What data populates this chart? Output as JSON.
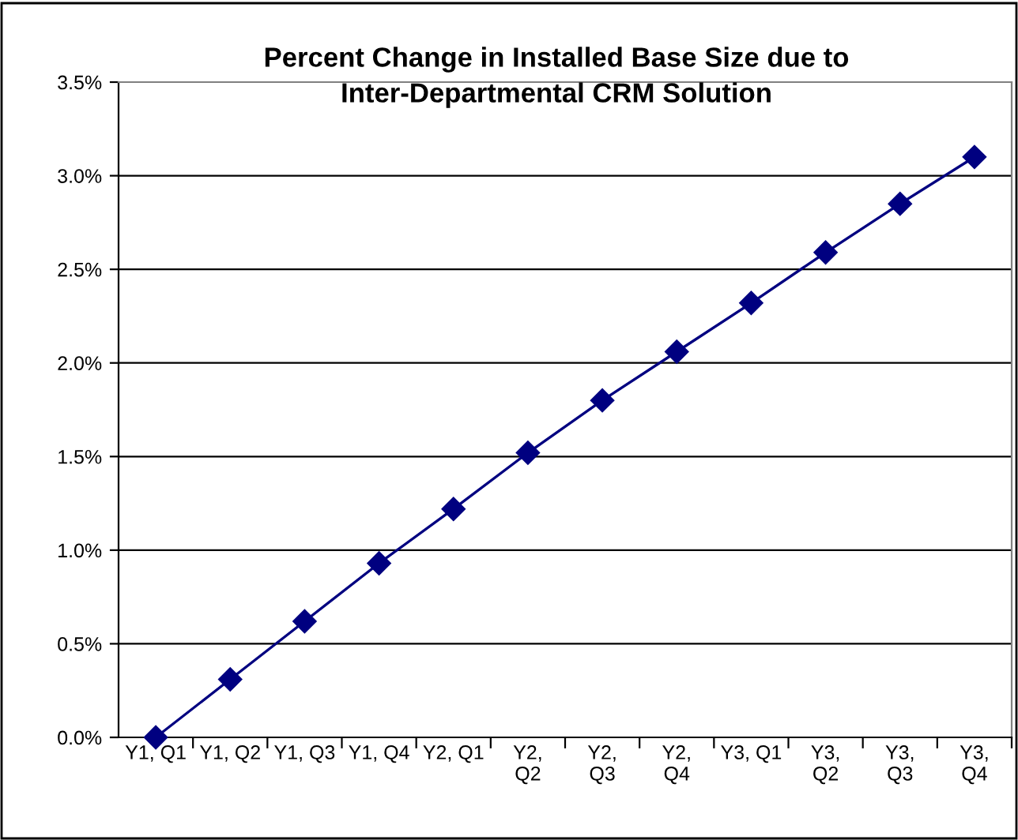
{
  "chart_data": {
    "type": "line",
    "title": "Percent Change in Installed Base Size due to\nInter-Departmental CRM Solution",
    "categories": [
      "Y1, Q1",
      "Y1, Q2",
      "Y1, Q3",
      "Y1, Q4",
      "Y2, Q1",
      "Y2,\nQ2",
      "Y2,\nQ3",
      "Y2,\nQ4",
      "Y3, Q1",
      "Y3,\nQ2",
      "Y3,\nQ3",
      "Y3,\nQ4"
    ],
    "series": [
      {
        "color": "#000080",
        "values": [
          0.0,
          0.31,
          0.62,
          0.93,
          1.22,
          1.52,
          1.8,
          2.06,
          2.32,
          2.59,
          2.85,
          3.1
        ]
      }
    ],
    "ylim": [
      0,
      3.5
    ],
    "yticks": [
      {
        "value": 0,
        "label": "0.0%"
      },
      {
        "value": 0.5,
        "label": "0.5%"
      },
      {
        "value": 1,
        "label": "1.0%"
      },
      {
        "value": 1.5,
        "label": "1.5%"
      },
      {
        "value": 2,
        "label": "2.0%"
      },
      {
        "value": 2.5,
        "label": "2.5%"
      },
      {
        "value": 3,
        "label": "3.0%"
      },
      {
        "value": 3.5,
        "label": "3.5%"
      }
    ],
    "grid": "y",
    "marker": "diamond",
    "line_style": "solid",
    "legend": false
  }
}
